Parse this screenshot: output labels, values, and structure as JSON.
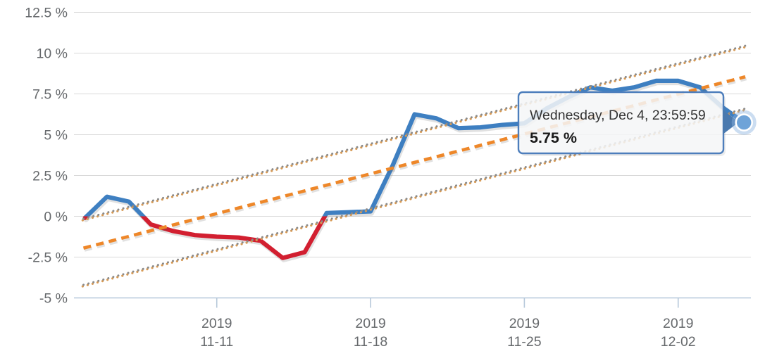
{
  "tooltip": {
    "date_line": "Wednesday, Dec 4, 23:59:59",
    "value_line": "5.75 %"
  },
  "colors": {
    "series_positive": "#3e7fc1",
    "series_negative": "#d21f30",
    "trend_dashed": "#ee8729",
    "band_dot_dark": "#8a8a8a",
    "band_dot_tan": "#d79a55",
    "gridline": "#d9d9d9",
    "axis_line": "#b6c8da",
    "tick_mark": "#b6c8da",
    "axis_label": "#66696c",
    "tooltip_border": "#4d7ebc",
    "tooltip_bg": "rgba(248,249,250,0.84)",
    "tooltip_text": "#333333",
    "tooltip_value_text": "#1a1a1a",
    "point_fill": "#6ea3d8",
    "point_ring": "#ffffff",
    "point_halo": "rgba(140,180,225,0.45)"
  },
  "chart_data": {
    "type": "line",
    "title": "",
    "xlabel": "",
    "ylabel": "",
    "grid": "horizontal",
    "legend": "none",
    "ylim": [
      -5,
      12.5
    ],
    "y_ticks": [
      {
        "value": 12.5,
        "label": "12.5 %"
      },
      {
        "value": 10,
        "label": "10 %"
      },
      {
        "value": 7.5,
        "label": "7.5 %"
      },
      {
        "value": 5,
        "label": "5 %"
      },
      {
        "value": 2.5,
        "label": "2.5 %"
      },
      {
        "value": 0,
        "label": "0 %"
      },
      {
        "value": -2.5,
        "label": "-2.5 %"
      },
      {
        "value": -5,
        "label": "-5 %"
      }
    ],
    "x_ticks": [
      {
        "index": 6,
        "line1": "2019",
        "line2": "11-11"
      },
      {
        "index": 13,
        "line1": "2019",
        "line2": "11-18"
      },
      {
        "index": 20,
        "line1": "2019",
        "line2": "11-25"
      },
      {
        "index": 27,
        "line1": "2019",
        "line2": "12-02"
      }
    ],
    "x": [
      "2019-11-04",
      "2019-11-05",
      "2019-11-06",
      "2019-11-07",
      "2019-11-08",
      "2019-11-09",
      "2019-11-10",
      "2019-11-11",
      "2019-11-12",
      "2019-11-13",
      "2019-11-14",
      "2019-11-15",
      "2019-11-16",
      "2019-11-17",
      "2019-11-18",
      "2019-11-19",
      "2019-11-20",
      "2019-11-21",
      "2019-11-22",
      "2019-11-23",
      "2019-11-24",
      "2019-11-25",
      "2019-11-26",
      "2019-11-27",
      "2019-11-28",
      "2019-11-29",
      "2019-11-30",
      "2019-12-01",
      "2019-12-02",
      "2019-12-03",
      "2019-12-04"
    ],
    "series": [
      {
        "name": "daily-change-percent",
        "type": "segmented-line",
        "color_rule": "blue above 0, red below 0",
        "values": [
          -0.1,
          1.2,
          0.9,
          -0.5,
          -0.9,
          -1.15,
          -1.25,
          -1.3,
          -1.5,
          -2.55,
          -2.2,
          0.2,
          0.25,
          0.3,
          3.1,
          6.25,
          6.0,
          5.4,
          5.45,
          5.6,
          5.7,
          6.6,
          7.3,
          7.9,
          7.7,
          7.9,
          8.3,
          8.3,
          7.9,
          6.7,
          5.75
        ]
      },
      {
        "name": "trend-line",
        "type": "straight-dashed",
        "start_value": -1.95,
        "end_value": 8.55
      },
      {
        "name": "confidence-band-upper",
        "type": "straight-dotted",
        "start_value": -0.15,
        "end_value": 10.45
      },
      {
        "name": "confidence-band-lower",
        "type": "straight-dotted",
        "start_value": -4.2,
        "end_value": 6.6
      }
    ],
    "highlighted_point": {
      "x": "2019-12-04",
      "value": 5.75
    }
  }
}
